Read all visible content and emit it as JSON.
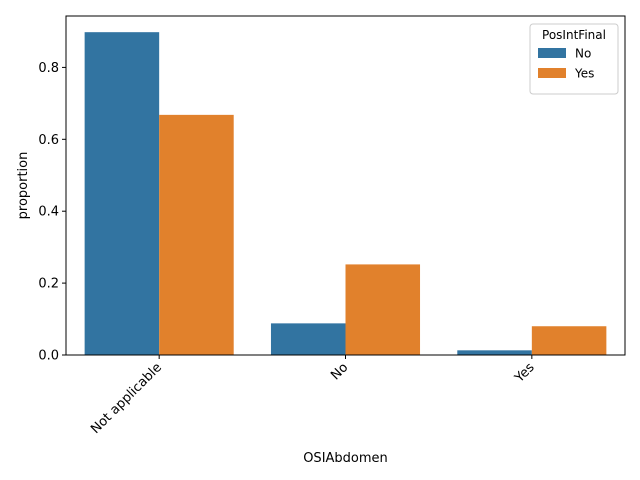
{
  "chart_data": {
    "type": "bar",
    "categories": [
      "Not applicable",
      "No",
      "Yes"
    ],
    "series": [
      {
        "name": "No",
        "color": "#3274a1",
        "values": [
          0.898,
          0.088,
          0.013
        ]
      },
      {
        "name": "Yes",
        "color": "#e1812c",
        "values": [
          0.668,
          0.252,
          0.08
        ]
      }
    ],
    "xlabel": "OSIAbdomen",
    "ylabel": "proportion",
    "ylim": [
      0,
      0.943
    ],
    "yticks": [
      0.0,
      0.2,
      0.4,
      0.6,
      0.8
    ],
    "ytick_labels": [
      "0.0",
      "0.2",
      "0.4",
      "0.6",
      "0.8"
    ],
    "legend": {
      "title": "PosIntFinal",
      "placement": "top-right"
    },
    "grid": false
  }
}
